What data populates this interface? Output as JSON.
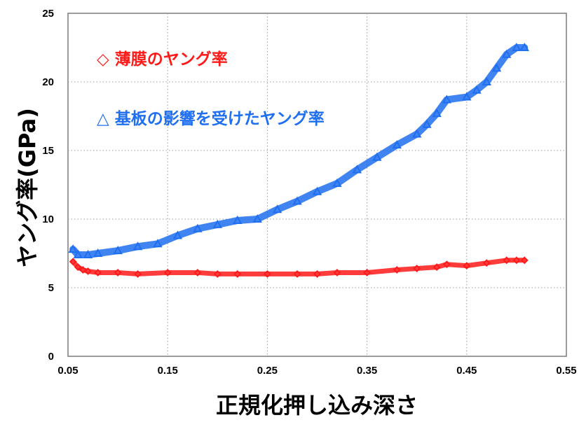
{
  "chart_data": {
    "type": "scatter",
    "xlabel": "正規化押し込み深さ",
    "ylabel": "ヤング率(GPa)",
    "xlim": [
      0.05,
      0.55
    ],
    "ylim": [
      0,
      25
    ],
    "grid": true,
    "x_ticks": [
      "0.05",
      "0.15",
      "0.25",
      "0.35",
      "0.45",
      "0.55"
    ],
    "y_ticks": [
      "0",
      "5",
      "10",
      "15",
      "20",
      "25"
    ],
    "legend_placement": "top-left",
    "series": [
      {
        "name": "◇ 薄膜のヤング率",
        "color": "#ff1a1a",
        "marker": "diamond",
        "x": [
          0.055,
          0.06,
          0.065,
          0.07,
          0.08,
          0.1,
          0.12,
          0.15,
          0.18,
          0.2,
          0.22,
          0.25,
          0.28,
          0.3,
          0.32,
          0.35,
          0.38,
          0.4,
          0.42,
          0.43,
          0.45,
          0.47,
          0.49,
          0.5,
          0.508
        ],
        "y": [
          6.9,
          6.5,
          6.3,
          6.2,
          6.1,
          6.1,
          6.0,
          6.1,
          6.1,
          6.0,
          6.0,
          6.0,
          6.0,
          6.0,
          6.1,
          6.1,
          6.3,
          6.4,
          6.5,
          6.7,
          6.6,
          6.8,
          7.0,
          7.0,
          7.0
        ]
      },
      {
        "name": "△ 基板の影響を受けたヤング率",
        "color": "#1f6ff0",
        "marker": "triangle",
        "x": [
          0.055,
          0.06,
          0.07,
          0.08,
          0.1,
          0.12,
          0.14,
          0.16,
          0.18,
          0.2,
          0.22,
          0.24,
          0.26,
          0.28,
          0.3,
          0.32,
          0.34,
          0.36,
          0.38,
          0.4,
          0.41,
          0.42,
          0.43,
          0.45,
          0.46,
          0.47,
          0.48,
          0.49,
          0.5,
          0.508
        ],
        "y": [
          7.8,
          7.4,
          7.4,
          7.5,
          7.7,
          8.0,
          8.2,
          8.8,
          9.3,
          9.6,
          9.9,
          10.0,
          10.7,
          11.3,
          12.0,
          12.6,
          13.6,
          14.5,
          15.4,
          16.2,
          16.9,
          17.7,
          18.7,
          18.9,
          19.4,
          20.0,
          21.0,
          22.0,
          22.5,
          22.5
        ]
      }
    ]
  }
}
